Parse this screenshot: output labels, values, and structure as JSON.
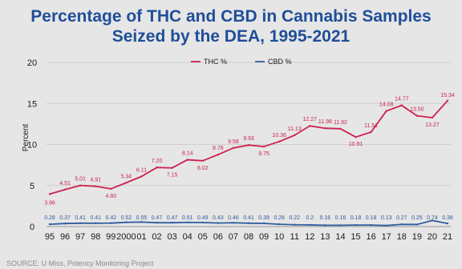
{
  "title_line1": "Percentage of THC and CBD in Cannabis Samples",
  "title_line2": "Seized by the DEA, 1995-2021",
  "source": "SOURCE: U Miss, Potency Monitoring Project",
  "chart_data": {
    "type": "line",
    "title": "Percentage of THC and CBD in Cannabis Samples Seized by the DEA, 1995-2021",
    "xlabel": "",
    "ylabel": "Percent",
    "ylim": [
      0,
      20
    ],
    "yticks": [
      "0",
      "5",
      "10",
      "15",
      "20"
    ],
    "grid": true,
    "legend_position": "top-center",
    "categories": [
      "95",
      "96",
      "97",
      "98",
      "99",
      "2000",
      "01",
      "02",
      "03",
      "04",
      "05",
      "06",
      "07",
      "08",
      "09",
      "10",
      "11",
      "12",
      "13",
      "14",
      "15",
      "16",
      "17",
      "18",
      "19",
      "20",
      "21"
    ],
    "series": [
      {
        "name": "THC %",
        "color": "#cc2250",
        "values": [
          3.96,
          4.51,
          5.01,
          4.91,
          4.6,
          5.34,
          6.11,
          7.2,
          7.15,
          8.14,
          8.02,
          8.76,
          9.58,
          9.93,
          9.75,
          10.36,
          11.13,
          12.27,
          11.98,
          11.92,
          10.91,
          11.51,
          14.08,
          14.77,
          13.5,
          13.27,
          15.34
        ],
        "labels": [
          "3.96",
          "4.51",
          "5.01",
          "4.91",
          "4.60",
          "5.34",
          "6.11",
          "7.20",
          "7.15",
          "8.14",
          "8.02",
          "8.76",
          "9.58",
          "9.93",
          "9.75",
          "10.36",
          "11.13",
          "12.27",
          "11.98",
          "11.92",
          "10.91",
          "11.51",
          "14.08",
          "14.77",
          "13.50",
          "13.27",
          "15.34"
        ]
      },
      {
        "name": "CBD %",
        "color": "#2f5c9e",
        "values": [
          0.28,
          0.37,
          0.41,
          0.41,
          0.42,
          0.52,
          0.55,
          0.47,
          0.47,
          0.51,
          0.49,
          0.43,
          0.46,
          0.41,
          0.39,
          0.28,
          0.22,
          0.2,
          0.16,
          0.16,
          0.18,
          0.18,
          0.13,
          0.27,
          0.25,
          0.74,
          0.38
        ],
        "labels": [
          "0.28",
          "0.37",
          "0.41",
          "0.41",
          "0.42",
          "0.52",
          "0.55",
          "0.47",
          "0.47",
          "0.51",
          "0.49",
          "0.43",
          "0.46",
          "0.41",
          "0.39",
          "0.28",
          "0.22",
          "0.2",
          "0.16",
          "0.16",
          "0.18",
          "0.18",
          "0.13",
          "0.27",
          "0.25",
          "0.74",
          "0.38"
        ]
      }
    ]
  }
}
